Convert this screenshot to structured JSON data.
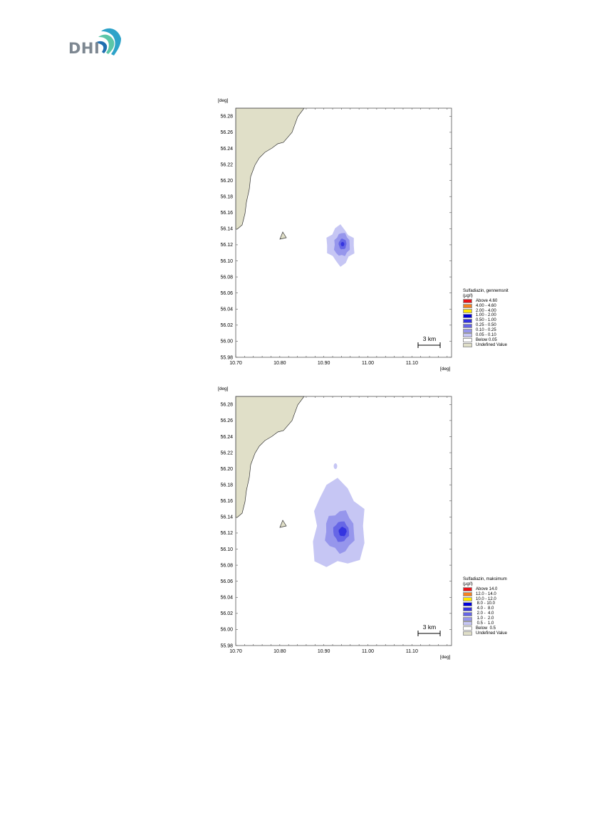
{
  "brand": {
    "logo_text": "DHI",
    "colors": {
      "logo_gray": "#7d8791",
      "wave_1": "#2ea3c9",
      "wave_2": "#5bc6a8",
      "wave_3": "#1f6fb0"
    }
  },
  "maps": [
    {
      "axis_unit_label": "[deg]",
      "lat_ticks": [
        "56.28",
        "56.26",
        "56.24",
        "56.22",
        "56.20",
        "56.18",
        "56.16",
        "56.14",
        "56.12",
        "56.10",
        "56.08",
        "56.06",
        "56.04",
        "56.02",
        "56.00",
        "55.98"
      ],
      "lon_ticks": [
        "10.70",
        "10.80",
        "10.90",
        "11.00",
        "11.10"
      ],
      "scale_bar_label": "3 km",
      "legend": {
        "title": "Sulfadiazin, gennemsnit",
        "unit": "(µg/l)",
        "items": [
          {
            "label": "Above 4.60",
            "color": "#e8141b"
          },
          {
            "label": "4.00 - 4.60",
            "color": "#f58220"
          },
          {
            "label": "2.00 - 4.00",
            "color": "#ffe800"
          },
          {
            "label": "1.00 - 2.00",
            "color": "#0000d8"
          },
          {
            "label": "0.50 - 1.00",
            "color": "#3434e0"
          },
          {
            "label": "0.25 - 0.50",
            "color": "#6666e6"
          },
          {
            "label": "0.10 - 0.25",
            "color": "#9696ec"
          },
          {
            "label": "0.05 - 0.10",
            "color": "#c6c6f4"
          },
          {
            "label": "Below 0.05",
            "color": "#ffffff"
          },
          {
            "label": "Undefined Value",
            "color": "#e0dfc8"
          }
        ]
      }
    },
    {
      "axis_unit_label": "[deg]",
      "lat_ticks": [
        "56.28",
        "56.26",
        "56.24",
        "56.22",
        "56.20",
        "56.18",
        "56.16",
        "56.14",
        "56.12",
        "56.10",
        "56.08",
        "56.06",
        "56.04",
        "56.02",
        "56.00",
        "55.98"
      ],
      "lon_ticks": [
        "10.70",
        "10.80",
        "10.90",
        "11.00",
        "11.10"
      ],
      "scale_bar_label": "3 km",
      "legend": {
        "title": "Sulfadiazin, maksimum",
        "unit": "(µg/l)",
        "items": [
          {
            "label": "Above 14.0",
            "color": "#e8141b"
          },
          {
            "label": "12.0 - 14.0",
            "color": "#f58220"
          },
          {
            "label": "10.0 - 12.0",
            "color": "#ffe800"
          },
          {
            "label": " 8.0 - 10.0",
            "color": "#0000d8"
          },
          {
            "label": " 4.0 -  8.0",
            "color": "#3434e0"
          },
          {
            "label": " 2.0 -  4.0",
            "color": "#6666e6"
          },
          {
            "label": " 1.0 -  2.0",
            "color": "#9696ec"
          },
          {
            "label": " 0.5 -  1.0",
            "color": "#c6c6f4"
          },
          {
            "label": "Below  0.5",
            "color": "#ffffff"
          },
          {
            "label": "Undefined Value",
            "color": "#e0dfc8"
          }
        ]
      }
    }
  ]
}
